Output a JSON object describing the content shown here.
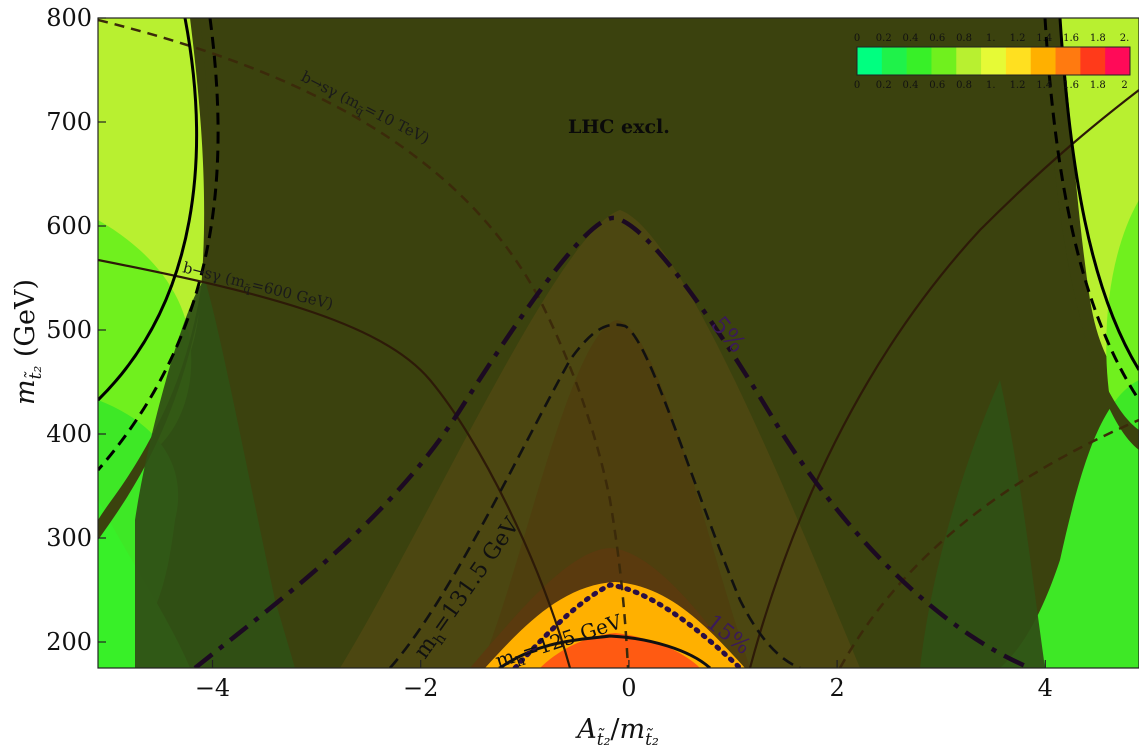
{
  "chart_data": {
    "type": "heatmap",
    "xlabel": "A_t̃2/m_t̃2",
    "ylabel": "m_t̃2 (GeV)",
    "xlim": [
      -5.1,
      4.9
    ],
    "ylim": [
      175,
      800
    ],
    "x_ticks": [
      "−4",
      "−2",
      "0",
      "2",
      "4"
    ],
    "y_ticks": [
      "200",
      "300",
      "400",
      "500",
      "600",
      "700",
      "800"
    ],
    "colorbar": {
      "placement": "top-right",
      "tick_labels_top": [
        "0",
        "0.2",
        "0.4",
        "0.6",
        "0.8",
        "1.",
        "1.2",
        "1.4",
        "1.6",
        "1.8",
        "2."
      ],
      "tick_labels_bottom": [
        "0",
        "0.2",
        "0.4",
        "0.6",
        "0.8",
        "1.",
        "1.2",
        "1.4",
        "1.6",
        "1.8",
        "2"
      ],
      "colors": [
        "#00ff80",
        "#1ff24a",
        "#38f028",
        "#70f01e",
        "#b8f030",
        "#e6fa36",
        "#ffe020",
        "#ffb000",
        "#ff7a10",
        "#ff3a1a",
        "#ff0a58"
      ]
    },
    "annotations": [
      {
        "text": "LHC excl.",
        "x": -0.1,
        "y": 723
      },
      {
        "text": "b→sγ (m_q̃=10 TeV)",
        "x": -1.6,
        "y": 760
      },
      {
        "text": "b→sγ (m_q̃=600 GeV)",
        "x": -3.4,
        "y": 560
      },
      {
        "text": "m_h=131.5 GeV",
        "x": -1.6,
        "y": 265
      },
      {
        "text": "m_h=125 GeV",
        "x": -0.65,
        "y": 198
      },
      {
        "text": "5%",
        "x": 1.0,
        "y": 505
      },
      {
        "text": "15%",
        "x": 1.05,
        "y": 210
      }
    ],
    "contours": [
      {
        "name": "LHC excl. boundary",
        "style": "solid-thick"
      },
      {
        "name": "b→sγ (m_q̃=10 TeV)",
        "style": "dashed"
      },
      {
        "name": "b→sγ (m_q̃=600 GeV)",
        "style": "solid-thin"
      },
      {
        "name": "m_h=131.5 GeV",
        "style": "dashed"
      },
      {
        "name": "m_h=125 GeV",
        "style": "solid"
      },
      {
        "name": "5%",
        "style": "dash-dot"
      },
      {
        "name": "15%",
        "style": "dotted"
      }
    ]
  },
  "labels": {
    "lhc_excl": "LHC excl.",
    "bsg10": "b→sγ (m",
    "bsg10_sub": "q̃",
    "bsg10_tail": "=10 TeV)",
    "bsg600": "b→sγ (m",
    "bsg600_sub": "q̃",
    "bsg600_tail": "=600 GeV)",
    "mh131": "m",
    "mh131_sub": "h",
    "mh131_tail": "=131.5 GeV",
    "mh125": "m",
    "mh125_sub": "h",
    "mh125_tail": "=125 GeV",
    "pct5": "5%",
    "pct15": "15%",
    "xlabel_a": "A",
    "xlabel_a_sub": "t̃₂",
    "xlabel_slash": "/",
    "xlabel_m": "m",
    "xlabel_m_sub": "t̃₂",
    "ylabel_m": "m",
    "ylabel_m_sub": "t̃₂",
    "ylabel_tail": " (GeV)"
  }
}
